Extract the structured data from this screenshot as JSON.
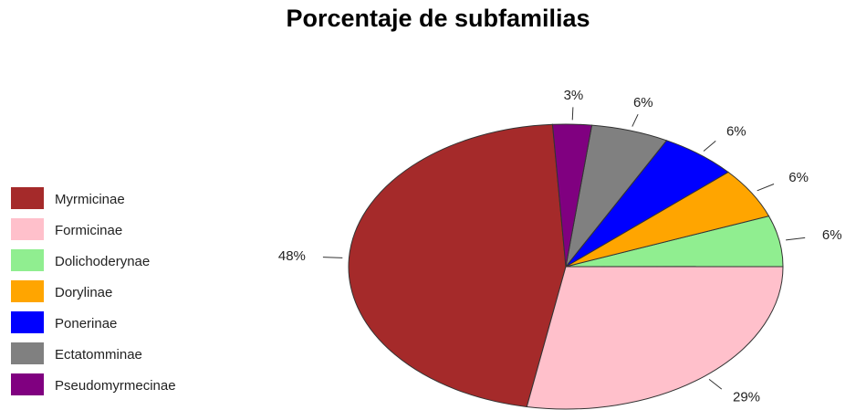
{
  "chart_data": {
    "type": "pie",
    "title": "Porcentaje de subfamilias",
    "categories": [
      "Myrmicinae",
      "Formicinae",
      "Dolichoderynae",
      "Dorylinae",
      "Ponerinae",
      "Ectatomminae",
      "Pseudomyrmecinae"
    ],
    "values": [
      48,
      29,
      6,
      6,
      6,
      6,
      3
    ],
    "value_labels": [
      "48%",
      "29%",
      "6%",
      "6%",
      "6%",
      "6%",
      "3%"
    ],
    "colors": [
      "#a52a2a",
      "#ffc0cb",
      "#90ee90",
      "#ffa500",
      "#0000ff",
      "#808080",
      "#800080"
    ],
    "legend": "left"
  }
}
